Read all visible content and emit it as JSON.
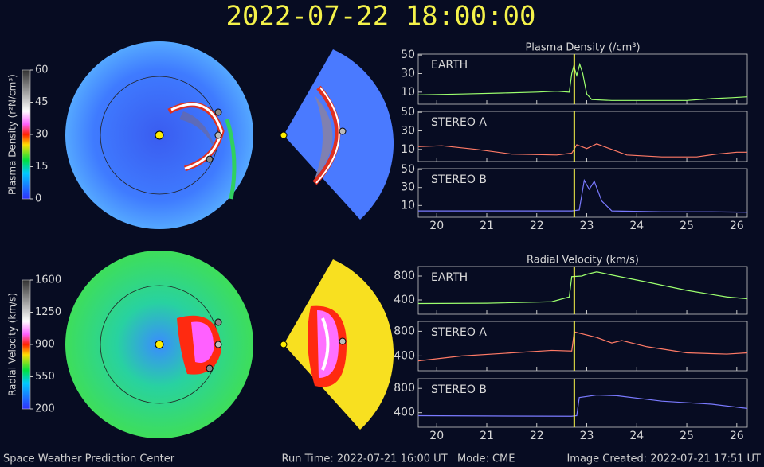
{
  "title": "2022-07-22 18:00:00",
  "time_marker": 22.75,
  "footer": {
    "left": "Space Weather Prediction Center",
    "center": "Run Time: 2022-07-21 16:00 UT   Mode: CME",
    "right": "Image Created: 2022-07-21 17:51 UT"
  },
  "colorbars": [
    {
      "label": "Plasma Density (r²N/cm³)",
      "ticks": [
        60,
        45,
        30,
        15,
        0
      ],
      "lim": [
        0,
        60
      ]
    },
    {
      "label": "Radial Velocity (km/s)",
      "ticks": [
        1600,
        1250,
        900,
        550,
        200
      ],
      "lim": [
        200,
        1600
      ]
    }
  ],
  "chart_data": [
    {
      "type": "line",
      "title": "Plasma Density (/cm³)",
      "xlim": [
        19.63,
        26.21
      ],
      "xticks": [
        20,
        21,
        22,
        23,
        24,
        25,
        26
      ],
      "ylim": [
        -3,
        51
      ],
      "yticks": [
        10,
        30,
        50
      ],
      "series": [
        {
          "name": "EARTH",
          "color": "#9cff6e",
          "x": [
            19.63,
            20.5,
            21.3,
            22.0,
            22.4,
            22.65,
            22.7,
            22.74,
            22.8,
            22.86,
            22.92,
            23.0,
            23.1,
            23.5,
            24.5,
            25.0,
            25.5,
            25.9,
            26.21
          ],
          "values": [
            7,
            8,
            9,
            10,
            11,
            10,
            30,
            38,
            28,
            40,
            30,
            8,
            2,
            1,
            1,
            1,
            3,
            4,
            5
          ]
        }
      ]
    },
    {
      "type": "line",
      "xlim": [
        19.63,
        26.21
      ],
      "xticks": [
        20,
        21,
        22,
        23,
        24,
        25,
        26
      ],
      "ylim": [
        -3,
        51
      ],
      "yticks": [
        10,
        30,
        50
      ],
      "series": [
        {
          "name": "STEREO A",
          "color": "#ff7a66",
          "x": [
            19.63,
            20.1,
            20.8,
            21.5,
            22.4,
            22.7,
            22.8,
            23.0,
            23.2,
            23.5,
            23.8,
            24.5,
            25.2,
            25.6,
            26.0,
            26.21
          ],
          "values": [
            13,
            14,
            10,
            5,
            4,
            6,
            15,
            11,
            16,
            10,
            4,
            2,
            2,
            5,
            7,
            7
          ]
        }
      ]
    },
    {
      "type": "line",
      "xlim": [
        19.63,
        26.21
      ],
      "xticks": [
        20,
        21,
        22,
        23,
        24,
        25,
        26
      ],
      "ylim": [
        -3,
        51
      ],
      "yticks": [
        10,
        30,
        50
      ],
      "show_xlabels": true,
      "series": [
        {
          "name": "STEREO B",
          "color": "#7a7aff",
          "x": [
            19.63,
            21.0,
            22.7,
            22.85,
            22.95,
            23.05,
            23.15,
            23.3,
            23.5,
            24.5,
            25.5,
            26.21
          ],
          "values": [
            4,
            4,
            4,
            5,
            38,
            28,
            37,
            15,
            4,
            3,
            3,
            2.5
          ]
        }
      ]
    },
    {
      "type": "line",
      "title": "Radial Velocity (km/s)",
      "xlim": [
        19.63,
        26.21
      ],
      "xticks": [
        20,
        21,
        22,
        23,
        24,
        25,
        26
      ],
      "ylim": [
        160,
        960
      ],
      "yticks": [
        400,
        800
      ],
      "series": [
        {
          "name": "EARTH",
          "color": "#9cff6e",
          "x": [
            19.63,
            21.0,
            22.3,
            22.65,
            22.7,
            22.9,
            23.0,
            23.2,
            23.6,
            24.2,
            25.0,
            25.8,
            26.21
          ],
          "values": [
            340,
            345,
            370,
            450,
            790,
            800,
            830,
            870,
            800,
            700,
            560,
            450,
            420
          ]
        }
      ]
    },
    {
      "type": "line",
      "xlim": [
        19.63,
        26.21
      ],
      "xticks": [
        20,
        21,
        22,
        23,
        24,
        25,
        26
      ],
      "ylim": [
        160,
        960
      ],
      "yticks": [
        400,
        800
      ],
      "series": [
        {
          "name": "STEREO A",
          "color": "#ff7a66",
          "x": [
            19.63,
            20.5,
            21.5,
            22.3,
            22.7,
            22.75,
            23.2,
            23.5,
            23.7,
            24.2,
            25.0,
            25.8,
            26.21
          ],
          "values": [
            320,
            400,
            450,
            490,
            480,
            790,
            700,
            610,
            650,
            550,
            450,
            430,
            450
          ]
        }
      ]
    },
    {
      "type": "line",
      "xlim": [
        19.63,
        26.21
      ],
      "xticks": [
        20,
        21,
        22,
        23,
        24,
        25,
        26
      ],
      "ylim": [
        160,
        960
      ],
      "yticks": [
        400,
        800
      ],
      "show_xlabels": true,
      "series": [
        {
          "name": "STEREO B",
          "color": "#7a7aff",
          "x": [
            19.63,
            21.0,
            22.7,
            22.8,
            22.85,
            23.2,
            23.6,
            24.5,
            25.5,
            26.21
          ],
          "values": [
            350,
            345,
            340,
            350,
            650,
            690,
            680,
            590,
            540,
            470
          ]
        }
      ]
    }
  ]
}
